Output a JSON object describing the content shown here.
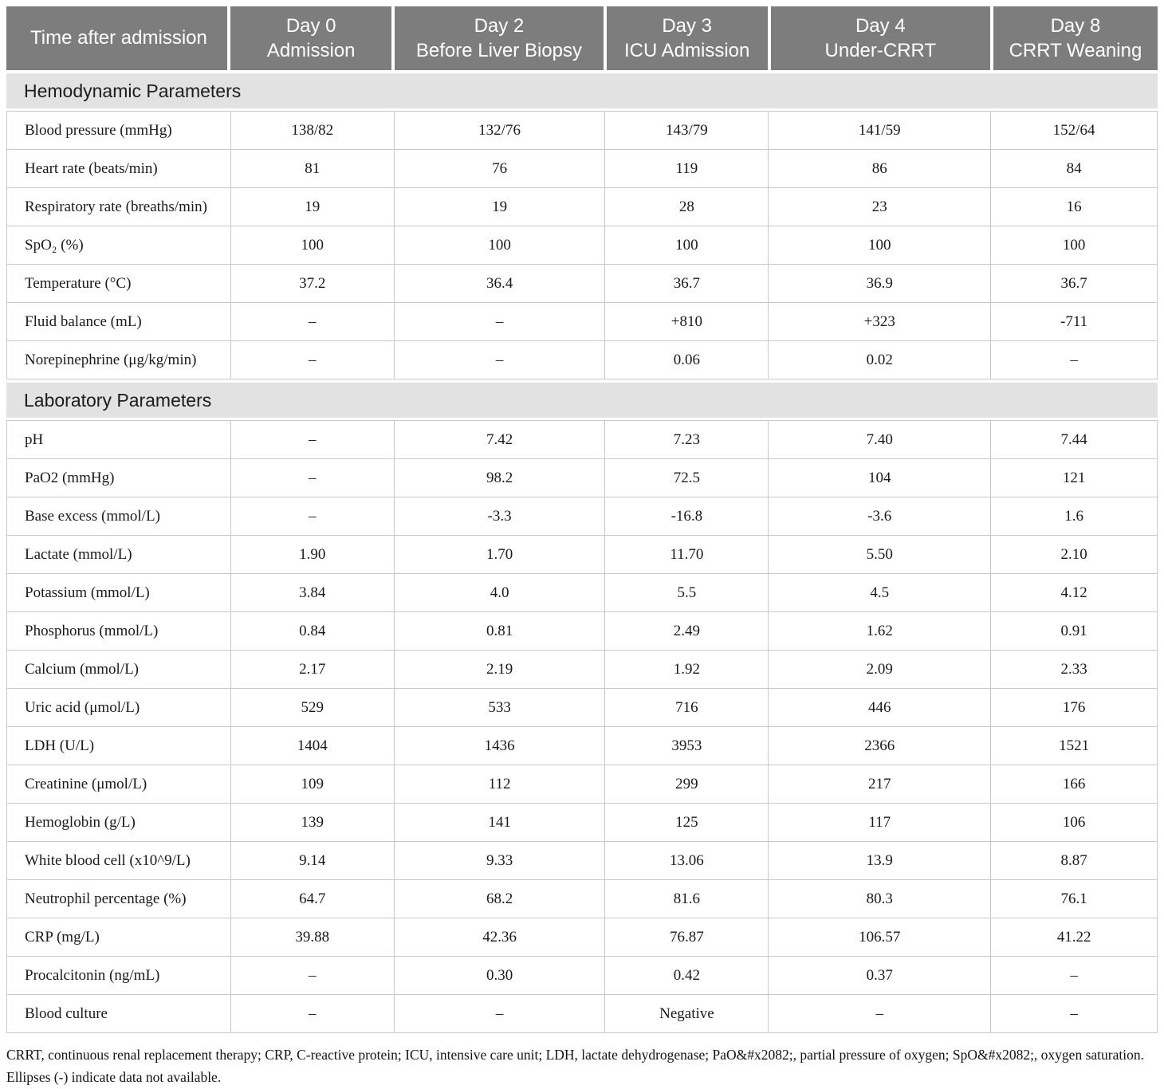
{
  "table": {
    "header": {
      "label": "Time after admission",
      "columns": [
        {
          "line1": "Day 0",
          "line2": "Admission"
        },
        {
          "line1": "Day 2",
          "line2": "Before Liver Biopsy"
        },
        {
          "line1": "Day 3",
          "line2": "ICU Admission"
        },
        {
          "line1": "Day 4",
          "line2": "Under-CRRT"
        },
        {
          "line1": "Day 8",
          "line2": "CRRT Weaning"
        }
      ]
    },
    "sections": [
      {
        "title": "Hemodynamic Parameters",
        "rows": [
          {
            "label": "Blood pressure (mmHg)",
            "values": [
              "138/82",
              "132/76",
              "143/79",
              "141/59",
              "152/64"
            ]
          },
          {
            "label": "Heart rate (beats/min)",
            "values": [
              "81",
              "76",
              "119",
              "86",
              "84"
            ]
          },
          {
            "label": "Respiratory rate (breaths/min)",
            "values": [
              "19",
              "19",
              "28",
              "23",
              "16"
            ]
          },
          {
            "label": "SpO₂ (%)",
            "values": [
              "100",
              "100",
              "100",
              "100",
              "100"
            ]
          },
          {
            "label": "Temperature (°C)",
            "values": [
              "37.2",
              "36.4",
              "36.7",
              "36.9",
              "36.7"
            ]
          },
          {
            "label": "Fluid balance (mL)",
            "values": [
              "–",
              "–",
              "+810",
              "+323",
              "-711"
            ]
          },
          {
            "label": "Norepinephrine (μg/kg/min)",
            "values": [
              "–",
              "–",
              "0.06",
              "0.02",
              "–"
            ]
          }
        ]
      },
      {
        "title": "Laboratory Parameters",
        "rows": [
          {
            "label": "pH",
            "values": [
              "–",
              "7.42",
              "7.23",
              "7.40",
              "7.44"
            ]
          },
          {
            "label": "PaO2 (mmHg)",
            "values": [
              "–",
              "98.2",
              "72.5",
              "104",
              "121"
            ]
          },
          {
            "label": "Base excess (mmol/L)",
            "values": [
              "–",
              "-3.3",
              "-16.8",
              "-3.6",
              "1.6"
            ]
          },
          {
            "label": "Lactate (mmol/L)",
            "values": [
              "1.90",
              "1.70",
              "11.70",
              "5.50",
              "2.10"
            ]
          },
          {
            "label": "Potassium (mmol/L)",
            "values": [
              "3.84",
              "4.0",
              "5.5",
              "4.5",
              "4.12"
            ]
          },
          {
            "label": "Phosphorus (mmol/L)",
            "values": [
              "0.84",
              "0.81",
              "2.49",
              "1.62",
              "0.91"
            ]
          },
          {
            "label": "Calcium (mmol/L)",
            "values": [
              "2.17",
              "2.19",
              "1.92",
              "2.09",
              "2.33"
            ]
          },
          {
            "label": "Uric acid (μmol/L)",
            "values": [
              "529",
              "533",
              "716",
              "446",
              "176"
            ]
          },
          {
            "label": "LDH (U/L)",
            "values": [
              "1404",
              "1436",
              "3953",
              "2366",
              "1521"
            ]
          },
          {
            "label": "Creatinine (μmol/L)",
            "values": [
              "109",
              "112",
              "299",
              "217",
              "166"
            ]
          },
          {
            "label": "Hemoglobin (g/L)",
            "values": [
              "139",
              "141",
              "125",
              "117",
              "106"
            ]
          },
          {
            "label": "White blood cell (x10^9/L)",
            "values": [
              "9.14",
              "9.33",
              "13.06",
              "13.9",
              "8.87"
            ]
          },
          {
            "label": "Neutrophil percentage (%)",
            "values": [
              "64.7",
              "68.2",
              "81.6",
              "80.3",
              "76.1"
            ]
          },
          {
            "label": "CRP (mg/L)",
            "values": [
              "39.88",
              "42.36",
              "76.87",
              "106.57",
              "41.22"
            ]
          },
          {
            "label": "Procalcitonin (ng/mL)",
            "values": [
              "–",
              "0.30",
              "0.42",
              "0.37",
              "–"
            ]
          },
          {
            "label": "Blood culture",
            "values": [
              "–",
              "–",
              "Negative",
              "–",
              "–"
            ]
          }
        ]
      }
    ],
    "footnote": "CRRT, continuous renal replacement therapy; CRP, C-reactive protein; ICU, intensive care unit; LDH, lactate dehydrogenase; PaO&#x2082;, partial pressure of oxygen; SpO&#x2082;, oxygen saturation. Ellipses (-) indicate data not available."
  },
  "colors": {
    "header_bg": "#7d7d7d",
    "header_text": "#ffffff",
    "section_bg": "#e2e2e2",
    "grid_line": "#c9c9c9",
    "body_text": "#1a1a1a"
  }
}
